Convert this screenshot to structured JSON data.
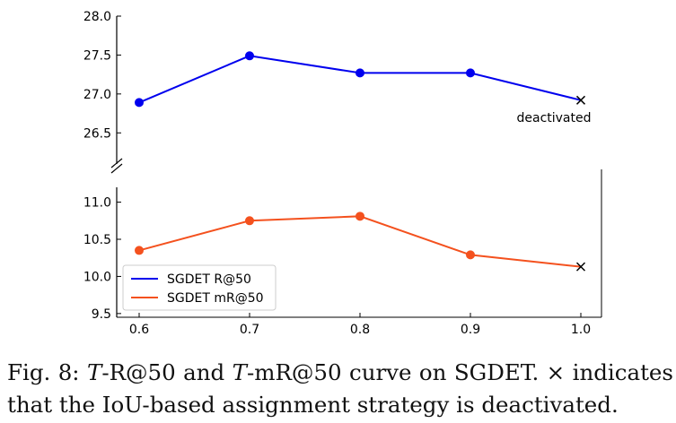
{
  "chart_data": {
    "type": "line",
    "broken_y_axis": true,
    "x": [
      0.6,
      0.7,
      0.8,
      0.9,
      1.0
    ],
    "x_tick_labels": [
      "0.6",
      "0.7",
      "0.8",
      "0.9",
      "1.0"
    ],
    "upper_panel": {
      "ylim": [
        26.1,
        28.0
      ],
      "y_ticks": [
        "26.5",
        "27.0",
        "27.5",
        "28.0"
      ],
      "y_tick_values": [
        26.5,
        27.0,
        27.5,
        28.0
      ]
    },
    "lower_panel": {
      "ylim": [
        9.45,
        11.2
      ],
      "y_ticks": [
        "9.5",
        "10.0",
        "10.5",
        "11.0"
      ],
      "y_tick_values": [
        9.5,
        10.0,
        10.5,
        11.0
      ]
    },
    "series": [
      {
        "name": "SGDET R@50",
        "panel": "upper",
        "color": "#0000ee",
        "values": [
          26.89,
          27.49,
          27.27,
          27.27,
          26.92
        ],
        "markers": [
          "circle",
          "circle",
          "circle",
          "circle",
          "x"
        ]
      },
      {
        "name": "SGDET mR@50",
        "panel": "lower",
        "color": "#f4511e",
        "values": [
          10.35,
          10.75,
          10.81,
          10.29,
          10.13
        ],
        "markers": [
          "circle",
          "circle",
          "circle",
          "circle",
          "x"
        ]
      }
    ],
    "annotations": [
      {
        "text": "deactivated",
        "series": "SGDET R@50",
        "x": 1.0
      }
    ],
    "legend": {
      "placement": "lower-left",
      "entries": [
        "SGDET R@50",
        "SGDET mR@50"
      ]
    },
    "grid": false
  },
  "caption": {
    "line1_prefix": "Fig. 8: ",
    "t1": "T",
    "line1_a": "-R@50 and ",
    "t2": "T",
    "line1_b": "-mR@50 curve on SGDET. × indicates",
    "line2": "that the IoU-based assignment strategy is deactivated."
  }
}
